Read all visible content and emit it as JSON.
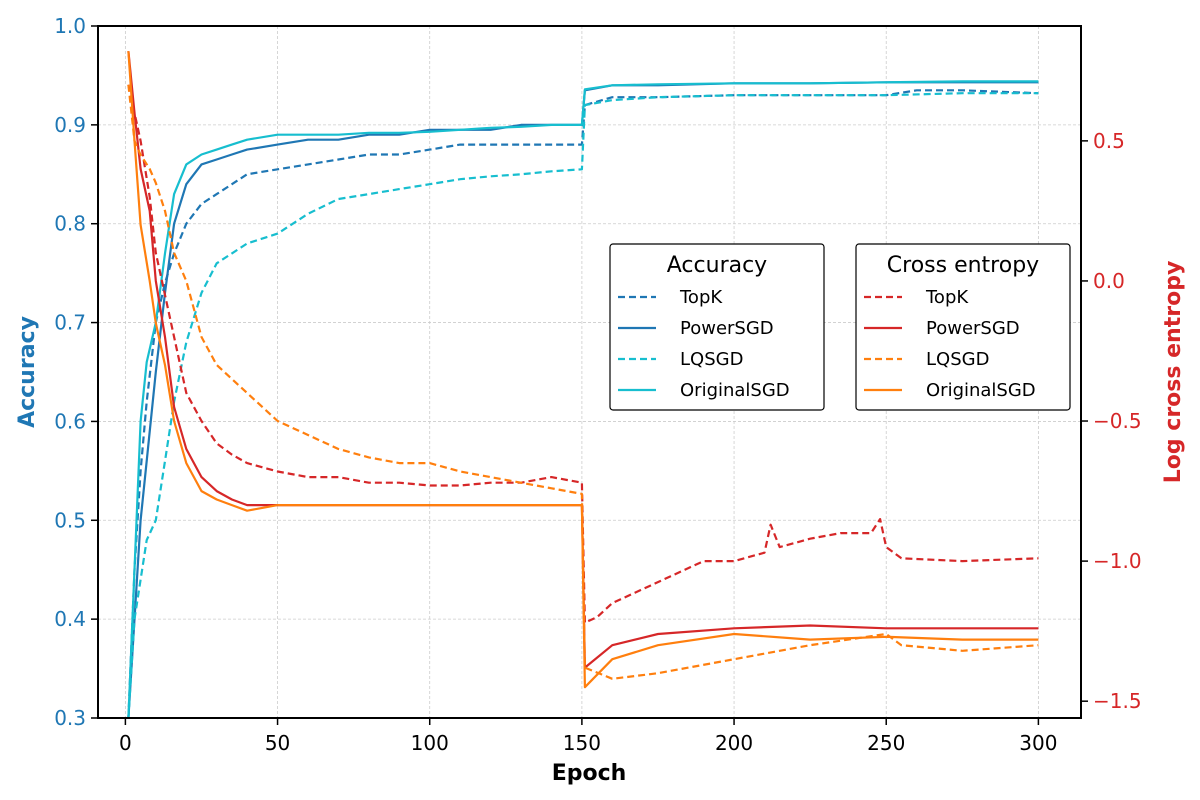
{
  "chart_data": {
    "type": "line",
    "xlabel": "Epoch",
    "ylabel_left": "Accuracy",
    "ylabel_right": "Log cross entropy",
    "xlim": [
      -9,
      314
    ],
    "ylim_left": [
      0.3,
      1.0
    ],
    "ylim_right": [
      -1.56,
      0.91
    ],
    "x_ticks": [
      0,
      50,
      100,
      150,
      200,
      250,
      300
    ],
    "y_left_ticks": [
      "0.3",
      "0.4",
      "0.5",
      "0.6",
      "0.7",
      "0.8",
      "0.9",
      "1.0"
    ],
    "y_right_ticks": [
      "0.5",
      "0.0",
      "−0.5",
      "−1.0",
      "−1.5"
    ],
    "grid": true,
    "legends": {
      "accuracy": {
        "title": "Accuracy",
        "placement": "center-right"
      },
      "cross_entropy": {
        "title": "Cross entropy",
        "placement": "center-right"
      }
    },
    "colors": {
      "left_axis": "#1f77b4",
      "right_axis": "#d62728",
      "acc_topk": "#1f77b4",
      "acc_powersgd": "#1f77b4",
      "acc_lqsgd": "#17becf",
      "acc_originalsgd": "#17becf",
      "ce_topk": "#d62728",
      "ce_powersgd": "#d62728",
      "ce_lqsgd": "#ff7f0e",
      "ce_originalsgd": "#ff7f0e"
    },
    "accuracy_series": [
      {
        "name": "TopK",
        "dash": true,
        "color": "#1f77b4",
        "x": [
          1,
          3,
          5,
          7,
          10,
          13,
          16,
          20,
          25,
          30,
          35,
          40,
          50,
          60,
          70,
          80,
          90,
          100,
          110,
          120,
          130,
          140,
          150,
          151,
          160,
          175,
          200,
          225,
          250,
          260,
          275,
          300
        ],
        "y": [
          0.3,
          0.45,
          0.55,
          0.62,
          0.7,
          0.74,
          0.77,
          0.8,
          0.82,
          0.83,
          0.84,
          0.85,
          0.855,
          0.86,
          0.865,
          0.87,
          0.87,
          0.875,
          0.88,
          0.88,
          0.88,
          0.88,
          0.88,
          0.92,
          0.928,
          0.928,
          0.93,
          0.93,
          0.93,
          0.935,
          0.935,
          0.932
        ]
      },
      {
        "name": "PowerSGD",
        "dash": false,
        "color": "#1f77b4",
        "x": [
          1,
          3,
          5,
          7,
          10,
          13,
          16,
          20,
          25,
          30,
          35,
          40,
          50,
          60,
          70,
          80,
          90,
          100,
          110,
          120,
          130,
          140,
          150,
          151,
          160,
          175,
          200,
          225,
          250,
          275,
          300
        ],
        "y": [
          0.3,
          0.4,
          0.5,
          0.56,
          0.65,
          0.73,
          0.8,
          0.84,
          0.86,
          0.865,
          0.87,
          0.875,
          0.88,
          0.885,
          0.885,
          0.89,
          0.89,
          0.895,
          0.895,
          0.895,
          0.9,
          0.9,
          0.9,
          0.935,
          0.94,
          0.94,
          0.942,
          0.942,
          0.943,
          0.943,
          0.943
        ]
      },
      {
        "name": "LQSGD",
        "dash": true,
        "color": "#17becf",
        "x": [
          1,
          3,
          5,
          7,
          10,
          13,
          16,
          20,
          25,
          30,
          35,
          40,
          50,
          60,
          70,
          80,
          90,
          100,
          110,
          120,
          130,
          140,
          150,
          151,
          160,
          175,
          200,
          225,
          250,
          275,
          300
        ],
        "y": [
          0.3,
          0.4,
          0.44,
          0.48,
          0.5,
          0.56,
          0.62,
          0.68,
          0.73,
          0.76,
          0.77,
          0.78,
          0.79,
          0.81,
          0.825,
          0.83,
          0.835,
          0.84,
          0.845,
          0.848,
          0.85,
          0.853,
          0.855,
          0.92,
          0.925,
          0.928,
          0.93,
          0.93,
          0.93,
          0.932,
          0.932
        ]
      },
      {
        "name": "OriginalSGD",
        "dash": false,
        "color": "#17becf",
        "x": [
          1,
          3,
          5,
          7,
          10,
          13,
          16,
          20,
          25,
          30,
          35,
          40,
          50,
          60,
          70,
          80,
          90,
          100,
          110,
          120,
          130,
          140,
          150,
          151,
          160,
          175,
          200,
          225,
          250,
          275,
          300
        ],
        "y": [
          0.3,
          0.45,
          0.6,
          0.66,
          0.7,
          0.77,
          0.83,
          0.86,
          0.87,
          0.875,
          0.88,
          0.885,
          0.89,
          0.89,
          0.89,
          0.892,
          0.892,
          0.893,
          0.895,
          0.897,
          0.898,
          0.9,
          0.9,
          0.936,
          0.94,
          0.941,
          0.942,
          0.942,
          0.943,
          0.944,
          0.944
        ]
      }
    ],
    "cross_entropy_series": [
      {
        "name": "TopK",
        "dash": true,
        "color": "#d62728",
        "x": [
          1,
          3,
          5,
          8,
          10,
          13,
          16,
          20,
          25,
          30,
          35,
          40,
          50,
          60,
          70,
          80,
          90,
          100,
          110,
          120,
          130,
          140,
          150,
          151,
          155,
          160,
          170,
          180,
          190,
          200,
          210,
          212,
          215,
          225,
          235,
          245,
          248,
          250,
          255,
          275,
          300
        ],
        "y": [
          0.7,
          0.6,
          0.5,
          0.3,
          0.1,
          -0.05,
          -0.2,
          -0.4,
          -0.5,
          -0.58,
          -0.62,
          -0.65,
          -0.68,
          -0.7,
          -0.7,
          -0.72,
          -0.72,
          -0.73,
          -0.73,
          -0.72,
          -0.72,
          -0.7,
          -0.72,
          -1.22,
          -1.2,
          -1.15,
          -1.1,
          -1.05,
          -1.0,
          -1.0,
          -0.97,
          -0.87,
          -0.95,
          -0.92,
          -0.9,
          -0.9,
          -0.85,
          -0.95,
          -0.99,
          -1.0,
          -0.99
        ]
      },
      {
        "name": "PowerSGD",
        "dash": false,
        "color": "#d62728",
        "x": [
          1,
          3,
          5,
          8,
          10,
          13,
          16,
          20,
          25,
          30,
          35,
          40,
          50,
          60,
          70,
          80,
          90,
          100,
          110,
          120,
          130,
          140,
          150,
          151,
          160,
          175,
          200,
          225,
          250,
          275,
          300
        ],
        "y": [
          0.82,
          0.6,
          0.4,
          0.25,
          0.0,
          -0.2,
          -0.45,
          -0.6,
          -0.7,
          -0.75,
          -0.78,
          -0.8,
          -0.8,
          -0.8,
          -0.8,
          -0.8,
          -0.8,
          -0.8,
          -0.8,
          -0.8,
          -0.8,
          -0.8,
          -0.8,
          -1.38,
          -1.3,
          -1.26,
          -1.24,
          -1.23,
          -1.24,
          -1.24,
          -1.24
        ]
      },
      {
        "name": "LQSGD",
        "dash": true,
        "color": "#ff7f0e",
        "x": [
          1,
          3,
          5,
          8,
          10,
          13,
          16,
          20,
          25,
          30,
          35,
          40,
          50,
          60,
          70,
          80,
          90,
          100,
          110,
          120,
          130,
          140,
          150,
          151,
          160,
          175,
          200,
          225,
          250,
          255,
          275,
          300
        ],
        "y": [
          0.7,
          0.5,
          0.45,
          0.4,
          0.35,
          0.25,
          0.1,
          0.0,
          -0.2,
          -0.3,
          -0.35,
          -0.4,
          -0.5,
          -0.55,
          -0.6,
          -0.63,
          -0.65,
          -0.65,
          -0.68,
          -0.7,
          -0.72,
          -0.74,
          -0.76,
          -1.38,
          -1.42,
          -1.4,
          -1.35,
          -1.3,
          -1.26,
          -1.3,
          -1.32,
          -1.3
        ]
      },
      {
        "name": "OriginalSGD",
        "dash": false,
        "color": "#ff7f0e",
        "x": [
          1,
          3,
          5,
          8,
          10,
          13,
          16,
          20,
          25,
          30,
          35,
          40,
          50,
          60,
          70,
          80,
          90,
          100,
          110,
          120,
          130,
          140,
          150,
          151,
          160,
          175,
          200,
          225,
          250,
          275,
          300
        ],
        "y": [
          0.82,
          0.5,
          0.2,
          0.0,
          -0.15,
          -0.3,
          -0.5,
          -0.65,
          -0.75,
          -0.78,
          -0.8,
          -0.82,
          -0.8,
          -0.8,
          -0.8,
          -0.8,
          -0.8,
          -0.8,
          -0.8,
          -0.8,
          -0.8,
          -0.8,
          -0.8,
          -1.45,
          -1.35,
          -1.3,
          -1.26,
          -1.28,
          -1.27,
          -1.28,
          -1.28
        ]
      }
    ]
  }
}
